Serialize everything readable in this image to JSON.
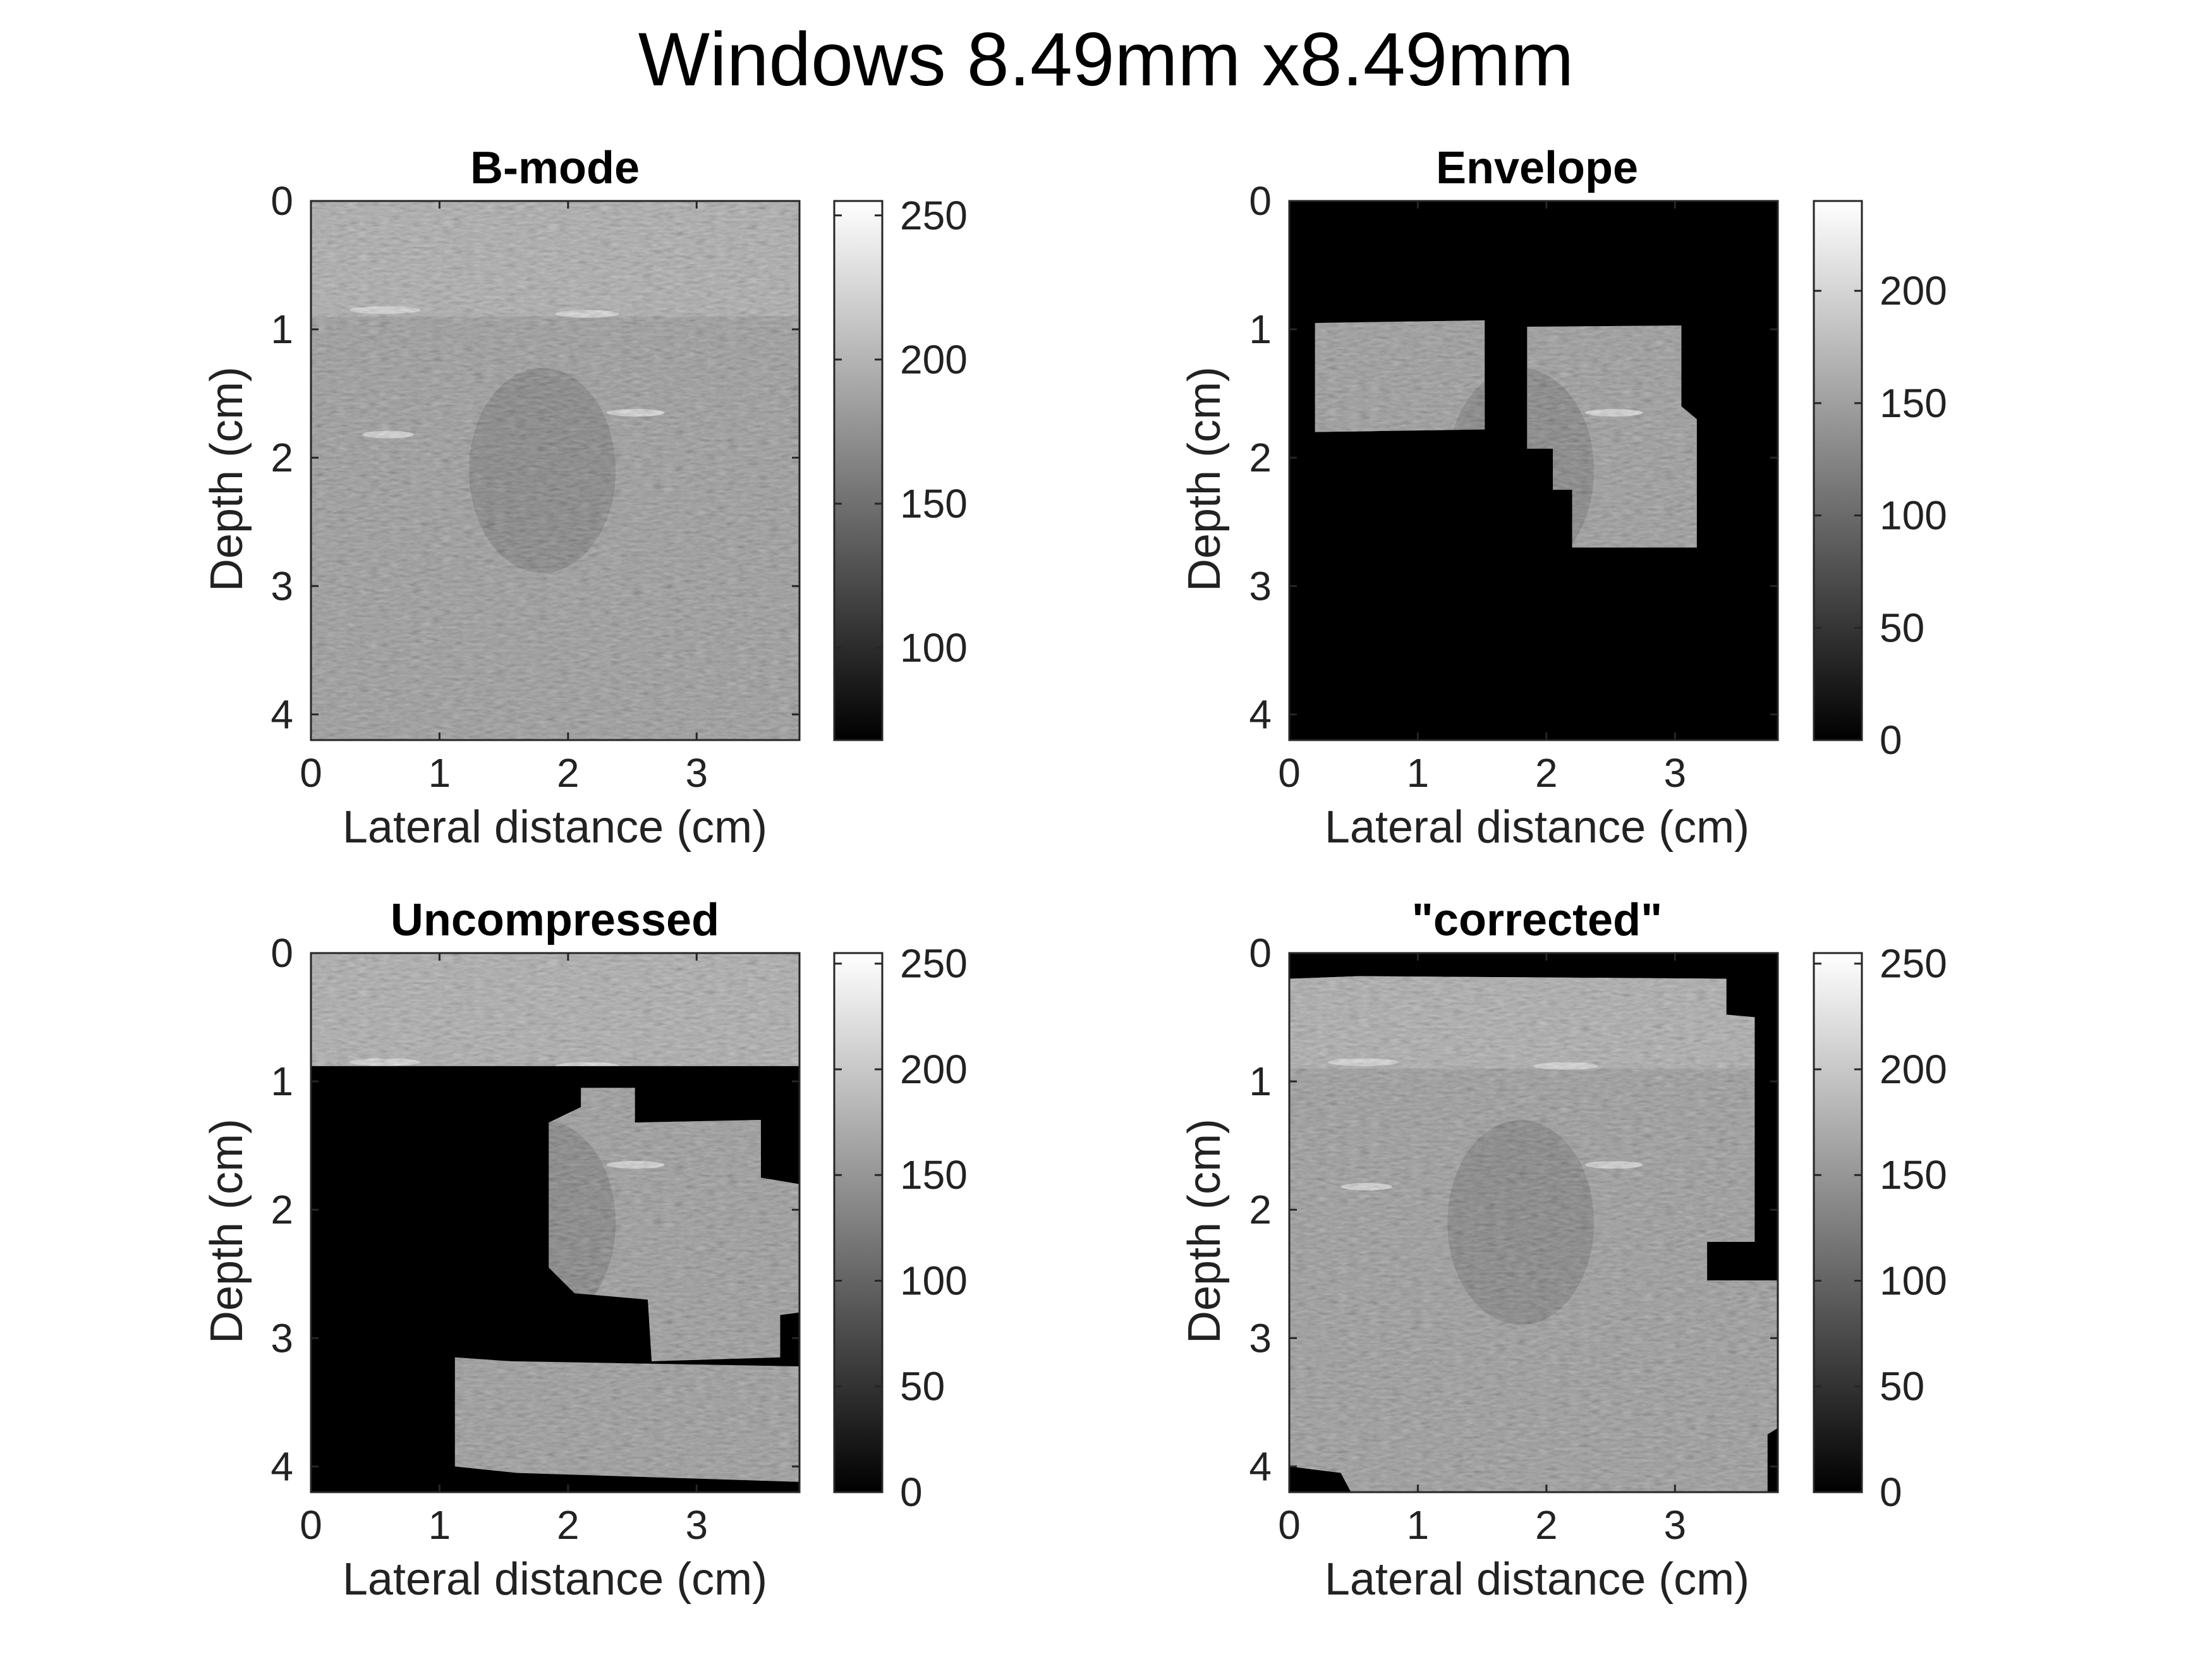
{
  "figure": {
    "title": "Windows 8.49mm x8.49mm"
  },
  "chart_data": [
    {
      "type": "heatmap",
      "title": "B-mode",
      "xlabel": "Lateral distance (cm)",
      "ylabel": "Depth (cm)",
      "xlim": [
        0,
        3.8
      ],
      "ylim": [
        0,
        4.2
      ],
      "xticks": [
        0,
        1,
        2,
        3
      ],
      "yticks": [
        0,
        1,
        2,
        3,
        4
      ],
      "colorbar": {
        "range": [
          68,
          255
        ],
        "ticks": [
          100,
          150,
          200,
          250
        ],
        "colormap": "gray"
      },
      "masked_regions": []
    },
    {
      "type": "heatmap",
      "title": "Envelope",
      "xlabel": "Lateral distance (cm)",
      "ylabel": "Depth (cm)",
      "xlim": [
        0,
        3.8
      ],
      "ylim": [
        0,
        4.2
      ],
      "xticks": [
        0,
        1,
        2,
        3
      ],
      "yticks": [
        0,
        1,
        2,
        3,
        4
      ],
      "colorbar": {
        "range": [
          0,
          240
        ],
        "ticks": [
          0,
          50,
          100,
          150,
          200
        ],
        "colormap": "gray"
      },
      "background": "masked",
      "visible_regions": [
        [
          [
            0.2,
            0.95
          ],
          [
            1.52,
            0.93
          ],
          [
            1.52,
            1.78
          ],
          [
            0.2,
            1.8
          ]
        ],
        [
          [
            1.85,
            0.98
          ],
          [
            3.05,
            0.97
          ],
          [
            3.05,
            1.6
          ],
          [
            3.17,
            1.7
          ],
          [
            3.17,
            2.7
          ],
          [
            2.2,
            2.7
          ],
          [
            2.2,
            2.25
          ],
          [
            2.05,
            2.25
          ],
          [
            2.05,
            1.93
          ],
          [
            1.85,
            1.93
          ]
        ]
      ]
    },
    {
      "type": "heatmap",
      "title": "Uncompressed",
      "xlabel": "Lateral distance (cm)",
      "ylabel": "Depth (cm)",
      "xlim": [
        0,
        3.8
      ],
      "ylim": [
        0,
        4.2
      ],
      "xticks": [
        0,
        1,
        2,
        3
      ],
      "yticks": [
        0,
        1,
        2,
        3,
        4
      ],
      "colorbar": {
        "range": [
          0,
          255
        ],
        "ticks": [
          0,
          50,
          100,
          150,
          200,
          250
        ],
        "colormap": "gray"
      },
      "background": "masked",
      "visible_regions": [
        [
          [
            0,
            0
          ],
          [
            3.8,
            0
          ],
          [
            3.8,
            0.88
          ],
          [
            0,
            0.88
          ]
        ],
        [
          [
            2.1,
            1.05
          ],
          [
            2.52,
            1.05
          ],
          [
            2.52,
            1.32
          ],
          [
            3.5,
            1.3
          ],
          [
            3.5,
            1.75
          ],
          [
            3.8,
            1.8
          ],
          [
            3.8,
            2.8
          ],
          [
            3.65,
            2.82
          ],
          [
            3.65,
            3.15
          ],
          [
            2.65,
            3.18
          ],
          [
            2.62,
            2.7
          ],
          [
            2.05,
            2.65
          ],
          [
            1.85,
            2.45
          ],
          [
            1.85,
            1.32
          ],
          [
            2.1,
            1.2
          ]
        ],
        [
          [
            1.12,
            3.15
          ],
          [
            1.55,
            3.18
          ],
          [
            3.8,
            3.22
          ],
          [
            3.8,
            4.12
          ],
          [
            1.6,
            4.05
          ],
          [
            1.12,
            4.0
          ]
        ]
      ]
    },
    {
      "type": "heatmap",
      "title": "\"corrected\"",
      "xlabel": "Lateral distance (cm)",
      "ylabel": "Depth (cm)",
      "xlim": [
        0,
        3.8
      ],
      "ylim": [
        0,
        4.2
      ],
      "xticks": [
        0,
        1,
        2,
        3
      ],
      "yticks": [
        0,
        1,
        2,
        3,
        4
      ],
      "colorbar": {
        "range": [
          0,
          255
        ],
        "ticks": [
          0,
          50,
          100,
          150,
          200,
          250
        ],
        "colormap": "gray"
      },
      "background": "masked",
      "visible_regions": [
        [
          [
            0,
            0.2
          ],
          [
            0.55,
            0.18
          ],
          [
            3.4,
            0.2
          ],
          [
            3.4,
            0.48
          ],
          [
            3.62,
            0.5
          ],
          [
            3.62,
            2.25
          ],
          [
            3.25,
            2.25
          ],
          [
            3.25,
            2.55
          ],
          [
            3.8,
            2.55
          ],
          [
            3.8,
            3.7
          ],
          [
            3.72,
            3.75
          ],
          [
            3.72,
            4.2
          ],
          [
            0.48,
            4.2
          ],
          [
            0.4,
            4.05
          ],
          [
            0,
            4.0
          ]
        ]
      ]
    }
  ]
}
